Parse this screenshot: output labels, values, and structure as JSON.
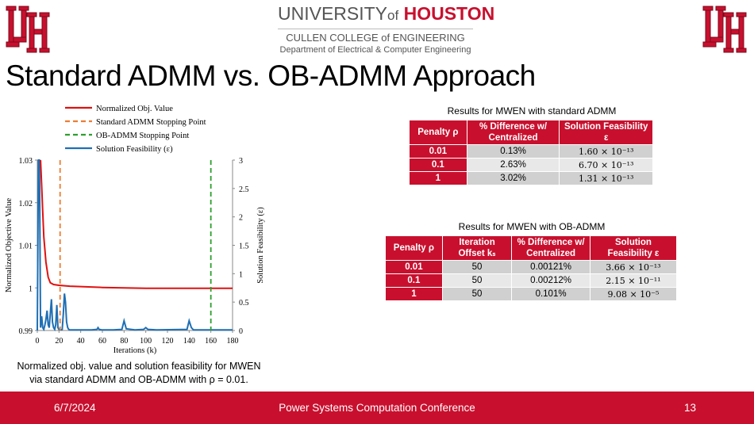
{
  "header": {
    "university_name": "UNIVERSITY",
    "university_of": "of",
    "university_houston": "HOUSTON",
    "college": "CULLEN COLLEGE of ENGINEERING",
    "department": "Department of Electrical & Computer Engineering"
  },
  "colors": {
    "brand_red": "#c8102e",
    "obj_line": "#e01010",
    "admm_stop": "#ed7d31",
    "obadmm_stop": "#2ca02c",
    "feasibility": "#1f6fb4"
  },
  "slide_title": "Standard ADMM vs. OB-ADMM Approach",
  "chart_caption_line1": "Normalized obj. value and solution feasibility for MWEN",
  "chart_caption_line2": "via standard ADMM and OB-ADMM with ρ = 0.01.",
  "chart_data": {
    "type": "line",
    "xlabel": "Iterations (k)",
    "ylabel": "Normalized Objective Value",
    "y2label": "Solution Feasibility (ε)",
    "xlim": [
      0,
      180
    ],
    "ylim": [
      0.99,
      1.03
    ],
    "y2lim": [
      0,
      3
    ],
    "xticks": [
      "0",
      "20",
      "40",
      "60",
      "80",
      "100",
      "120",
      "140",
      "160",
      "180"
    ],
    "yticks": [
      "0.99",
      "1",
      "1.01",
      "1.02",
      "1.03"
    ],
    "y2ticks": [
      "0",
      "0.5",
      "1",
      "1.5",
      "2",
      "2.5",
      "3"
    ],
    "legend": [
      "Normalized Obj. Value",
      "Standard ADMM Stopping Point",
      "OB-ADMM Stopping Point",
      "Solution Feasibility (ε)"
    ],
    "legend_position": "top",
    "stopping_points": {
      "standard_admm": 21,
      "ob_admm": 160
    },
    "series": [
      {
        "name": "Normalized Obj. Value",
        "axis": "left",
        "style": "solid",
        "x": [
          3,
          4,
          5,
          6,
          8,
          10,
          12,
          15,
          20,
          30,
          40,
          60,
          80,
          100,
          120,
          140,
          160,
          180
        ],
        "y": [
          1.03,
          1.024,
          1.018,
          1.012,
          1.006,
          1.0025,
          1.0012,
          1.0008,
          1.0006,
          1.0004,
          1.0003,
          1.0001,
          1.0,
          0.9999,
          0.9999,
          0.9999,
          0.9999,
          0.9999
        ]
      },
      {
        "name": "Solution Feasibility (ε)",
        "axis": "right",
        "style": "solid",
        "x": [
          0,
          1,
          2,
          3,
          4,
          5,
          6,
          7,
          8,
          9,
          10,
          11,
          12,
          13,
          14,
          15,
          16,
          17,
          18,
          19,
          20,
          21,
          22,
          23,
          24,
          25,
          26,
          27,
          28,
          29,
          30,
          32,
          35,
          40,
          50,
          55,
          56,
          57,
          60,
          70,
          78,
          80,
          82,
          90,
          98,
          100,
          102,
          110,
          138,
          140,
          142,
          144,
          150,
          160,
          170,
          180
        ],
        "y": [
          0,
          3,
          3,
          0.05,
          0.25,
          0.05,
          0.02,
          0.1,
          0.2,
          0.35,
          0.1,
          0.05,
          0.3,
          0.55,
          0.15,
          0.05,
          0.02,
          0.1,
          0.45,
          0.05,
          0.02,
          0.01,
          0.01,
          0.02,
          0.3,
          0.65,
          0.5,
          0.15,
          0.05,
          0.02,
          0.01,
          0.01,
          0.01,
          0.01,
          0.01,
          0.02,
          0.05,
          0.02,
          0.01,
          0.01,
          0.02,
          0.17,
          0.03,
          0.01,
          0.02,
          0.05,
          0.02,
          0.01,
          0.02,
          0.17,
          0.05,
          0.01,
          0.01,
          0.01,
          0.01,
          0.01
        ]
      }
    ]
  },
  "table1": {
    "title": "Results for MWEN with standard ADMM",
    "headers": [
      "Penalty ρ",
      "% Difference w/ Centralized",
      "Solution Feasibility ε"
    ],
    "rows": [
      [
        "0.01",
        "0.13%",
        "1.60 × 10⁻¹³"
      ],
      [
        "0.1",
        "2.63%",
        "6.70 × 10⁻¹³"
      ],
      [
        "1",
        "3.02%",
        "1.31 × 10⁻¹³"
      ]
    ]
  },
  "table2": {
    "title": "Results for MWEN with OB-ADMM",
    "headers": [
      "Penalty ρ",
      "Iteration Offset kₛ",
      "% Difference w/ Centralized",
      "Solution Feasibility ε"
    ],
    "rows": [
      [
        "0.01",
        "50",
        "0.00121%",
        "3.66 × 10⁻¹³"
      ],
      [
        "0.1",
        "50",
        "0.00212%",
        "2.15 × 10⁻¹¹"
      ],
      [
        "1",
        "50",
        "0.101%",
        "9.08 × 10⁻⁵"
      ]
    ]
  },
  "footer": {
    "date": "6/7/2024",
    "conference": "Power Systems Computation Conference",
    "page": "13"
  }
}
